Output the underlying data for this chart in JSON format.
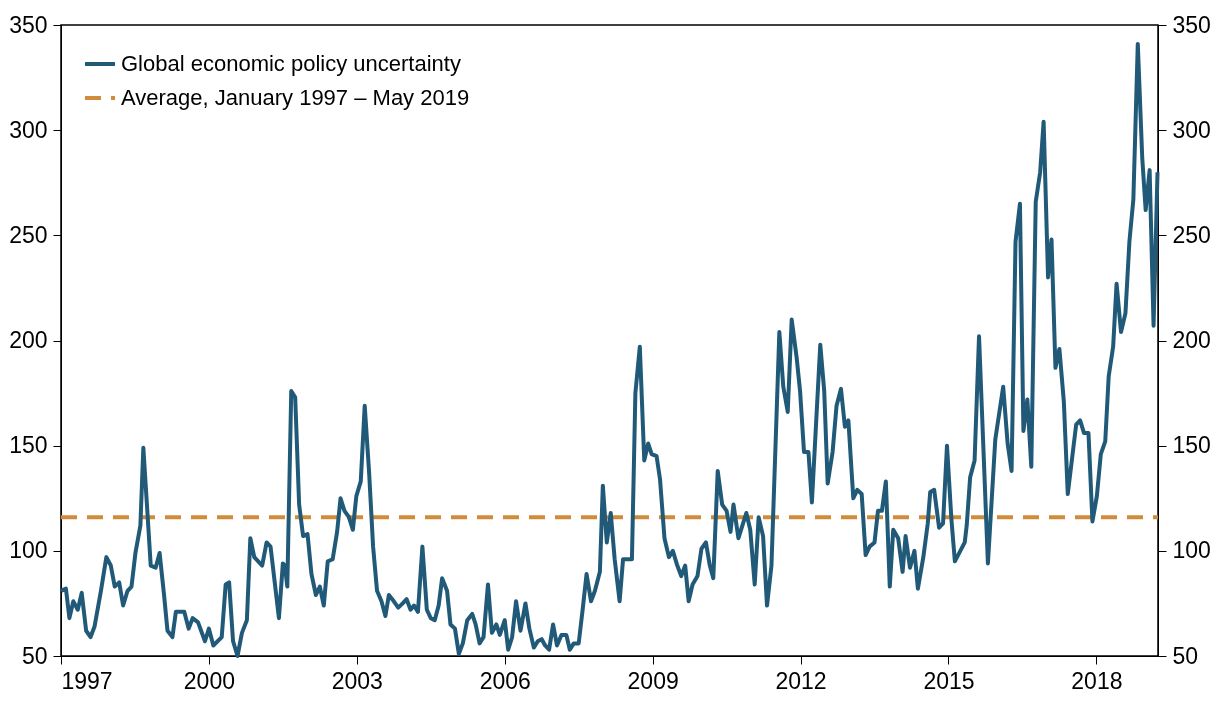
{
  "chart_data": {
    "type": "line",
    "x": [
      1997.0,
      1997.1,
      1997.17,
      1997.25,
      1997.34,
      1997.42,
      1997.51,
      1997.6,
      1997.68,
      1997.81,
      1997.92,
      1998.01,
      1998.09,
      1998.18,
      1998.26,
      1998.35,
      1998.43,
      1998.51,
      1998.61,
      1998.67,
      1998.74,
      1998.82,
      1998.92,
      1999.0,
      1999.09,
      1999.16,
      1999.26,
      1999.33,
      1999.5,
      1999.59,
      1999.67,
      1999.78,
      1999.92,
      2000.0,
      2000.09,
      2000.26,
      2000.34,
      2000.41,
      2000.49,
      2000.58,
      2000.67,
      2000.77,
      2000.84,
      2000.92,
      2001.08,
      2001.17,
      2001.25,
      2001.34,
      2001.42,
      2001.5,
      2001.54,
      2001.59,
      2001.67,
      2001.75,
      2001.83,
      2001.91,
      2002.0,
      2002.08,
      2002.17,
      2002.25,
      2002.33,
      2002.41,
      2002.51,
      2002.6,
      2002.67,
      2002.75,
      2002.84,
      2002.92,
      2002.99,
      2003.08,
      2003.16,
      2003.25,
      2003.33,
      2003.41,
      2003.5,
      2003.58,
      2003.65,
      2003.75,
      2003.84,
      2003.93,
      2004.01,
      2004.09,
      2004.16,
      2004.24,
      2004.33,
      2004.42,
      2004.5,
      2004.58,
      2004.66,
      2004.73,
      2004.83,
      2004.9,
      2004.99,
      2005.07,
      2005.15,
      2005.24,
      2005.34,
      2005.41,
      2005.49,
      2005.57,
      2005.66,
      2005.74,
      2005.83,
      2005.9,
      2006.0,
      2006.07,
      2006.15,
      2006.23,
      2006.32,
      2006.42,
      2006.5,
      2006.59,
      2006.67,
      2006.75,
      2006.82,
      2006.9,
      2006.98,
      2007.06,
      2007.15,
      2007.25,
      2007.32,
      2007.4,
      2007.5,
      2007.58,
      2007.66,
      2007.75,
      2007.83,
      2007.93,
      2007.99,
      2008.07,
      2008.15,
      2008.23,
      2008.33,
      2008.4,
      2008.5,
      2008.58,
      2008.65,
      2008.74,
      2008.83,
      2008.91,
      2008.98,
      2009.08,
      2009.15,
      2009.24,
      2009.33,
      2009.41,
      2009.5,
      2009.58,
      2009.66,
      2009.73,
      2009.81,
      2009.91,
      2009.99,
      2010.08,
      2010.16,
      2010.23,
      2010.32,
      2010.41,
      2010.5,
      2010.58,
      2010.64,
      2010.74,
      2010.82,
      2010.9,
      2010.98,
      2011.07,
      2011.15,
      2011.24,
      2011.32,
      2011.41,
      2011.57,
      2011.65,
      2011.74,
      2011.82,
      2011.92,
      2011.99,
      2012.07,
      2012.16,
      2012.23,
      2012.4,
      2012.48,
      2012.55,
      2012.65,
      2012.73,
      2012.82,
      2012.9,
      2012.97,
      2013.07,
      2013.15,
      2013.24,
      2013.32,
      2013.4,
      2013.5,
      2013.57,
      2013.65,
      2013.73,
      2013.81,
      2013.88,
      2013.98,
      2014.07,
      2014.13,
      2014.22,
      2014.31,
      2014.38,
      2014.49,
      2014.58,
      2014.63,
      2014.71,
      2014.81,
      2014.89,
      2014.97,
      2015.06,
      2015.13,
      2015.33,
      2015.37,
      2015.44,
      2015.53,
      2015.62,
      2015.71,
      2015.8,
      2015.95,
      2016.11,
      2016.2,
      2016.28,
      2016.36,
      2016.45,
      2016.52,
      2016.6,
      2016.68,
      2016.77,
      2016.86,
      2016.93,
      2017.02,
      2017.09,
      2017.17,
      2017.25,
      2017.34,
      2017.42,
      2017.59,
      2017.67,
      2017.75,
      2017.84,
      2017.92,
      2018.01,
      2018.09,
      2018.18,
      2018.25,
      2018.34,
      2018.41,
      2018.5,
      2018.59,
      2018.67,
      2018.75,
      2018.84,
      2018.93,
      2019.0,
      2019.08,
      2019.16,
      2019.24
    ],
    "series": [
      {
        "name": "Global economic policy uncertainty",
        "color": "#215a78",
        "values": [
          81,
          82,
          68,
          76,
          72,
          80,
          62,
          59,
          64,
          81,
          97,
          93,
          83,
          85,
          74,
          81,
          83,
          99,
          112,
          149,
          123,
          93,
          92,
          99,
          79,
          62,
          59,
          71,
          71,
          63,
          68,
          66,
          57,
          63,
          55,
          59,
          84,
          85,
          57,
          50,
          61,
          67,
          106,
          97,
          93,
          104,
          102,
          84,
          68,
          94,
          93,
          83,
          176,
          173,
          122,
          107,
          108,
          89,
          79,
          83,
          74,
          95,
          96,
          109,
          125,
          119,
          116,
          110,
          126,
          133,
          169,
          137,
          102,
          81,
          76,
          69,
          79,
          76,
          73,
          75,
          77,
          72,
          74,
          71,
          102,
          72,
          68,
          67,
          74,
          87,
          81,
          65,
          63,
          51,
          56,
          67,
          70,
          65,
          56,
          59,
          84,
          61,
          65,
          60,
          67,
          53,
          59,
          76,
          62,
          75,
          63,
          54,
          57,
          58,
          55,
          53,
          65,
          55,
          60,
          60,
          53,
          56,
          56,
          72,
          89,
          76,
          81,
          90,
          131,
          104,
          118,
          96,
          76,
          96,
          96,
          96,
          175,
          197,
          143,
          151,
          146,
          145,
          134,
          106,
          97,
          100,
          93,
          88,
          93,
          76,
          84,
          88,
          101,
          104,
          93,
          87,
          138,
          122,
          119,
          109,
          122,
          106,
          112,
          118,
          110,
          84,
          116,
          107,
          74,
          93,
          204,
          178,
          166,
          210,
          192,
          176,
          147,
          147,
          123,
          198,
          176,
          132,
          147,
          169,
          177,
          159,
          162,
          125,
          129,
          127,
          98,
          102,
          104,
          119,
          119,
          133,
          83,
          110,
          106,
          90,
          107,
          92,
          100,
          82,
          97,
          113,
          128,
          129,
          111,
          113,
          150,
          115,
          95,
          104,
          112,
          135,
          143,
          202,
          148,
          94,
          153,
          178,
          151,
          138,
          247,
          265,
          157,
          172,
          140,
          266,
          280,
          304,
          230,
          248,
          187,
          196,
          171,
          127,
          160,
          162,
          156,
          156,
          114,
          126,
          146,
          152,
          183,
          197,
          227,
          204,
          213,
          247,
          267,
          341,
          287,
          262,
          281,
          207,
          280
        ]
      }
    ],
    "ref_lines": [
      {
        "axis": "y",
        "value": 116,
        "label": "Average, January 1997 – May 2019",
        "color": "#d08c3a",
        "line_style": "dashed"
      }
    ],
    "xlim": [
      1997,
      2019.25
    ],
    "xticks": [
      1997,
      2000,
      2003,
      2006,
      2009,
      2012,
      2015,
      2018
    ],
    "ylim": [
      50,
      350
    ],
    "yticks": [
      50,
      100,
      150,
      200,
      250,
      300,
      350
    ],
    "y2lim": [
      50,
      350
    ],
    "y2ticks": [
      50,
      100,
      150,
      200,
      250,
      300,
      350
    ],
    "grid": false,
    "legend": "top left",
    "line_style": "solid",
    "marker": "none"
  }
}
